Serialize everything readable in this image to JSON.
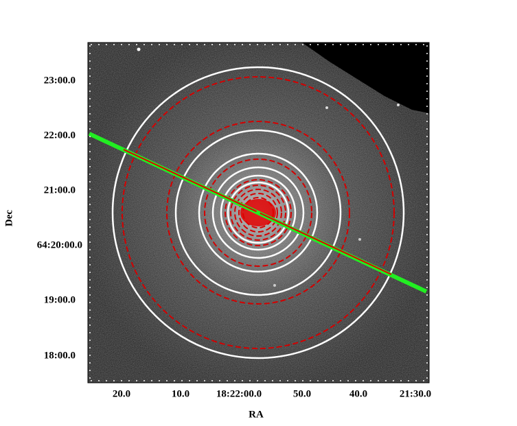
{
  "axes": {
    "x": {
      "label": "RA",
      "ticks": [
        "20.0",
        "10.0",
        "18:22:00.0",
        "50.0",
        "40.0",
        "21:30.0"
      ]
    },
    "y": {
      "label": "Dec",
      "ticks": [
        "23:00.0",
        "22:00.0",
        "21:00.0",
        "64:20:00.0",
        "19:00.0",
        "18:00.0"
      ]
    }
  }
}
